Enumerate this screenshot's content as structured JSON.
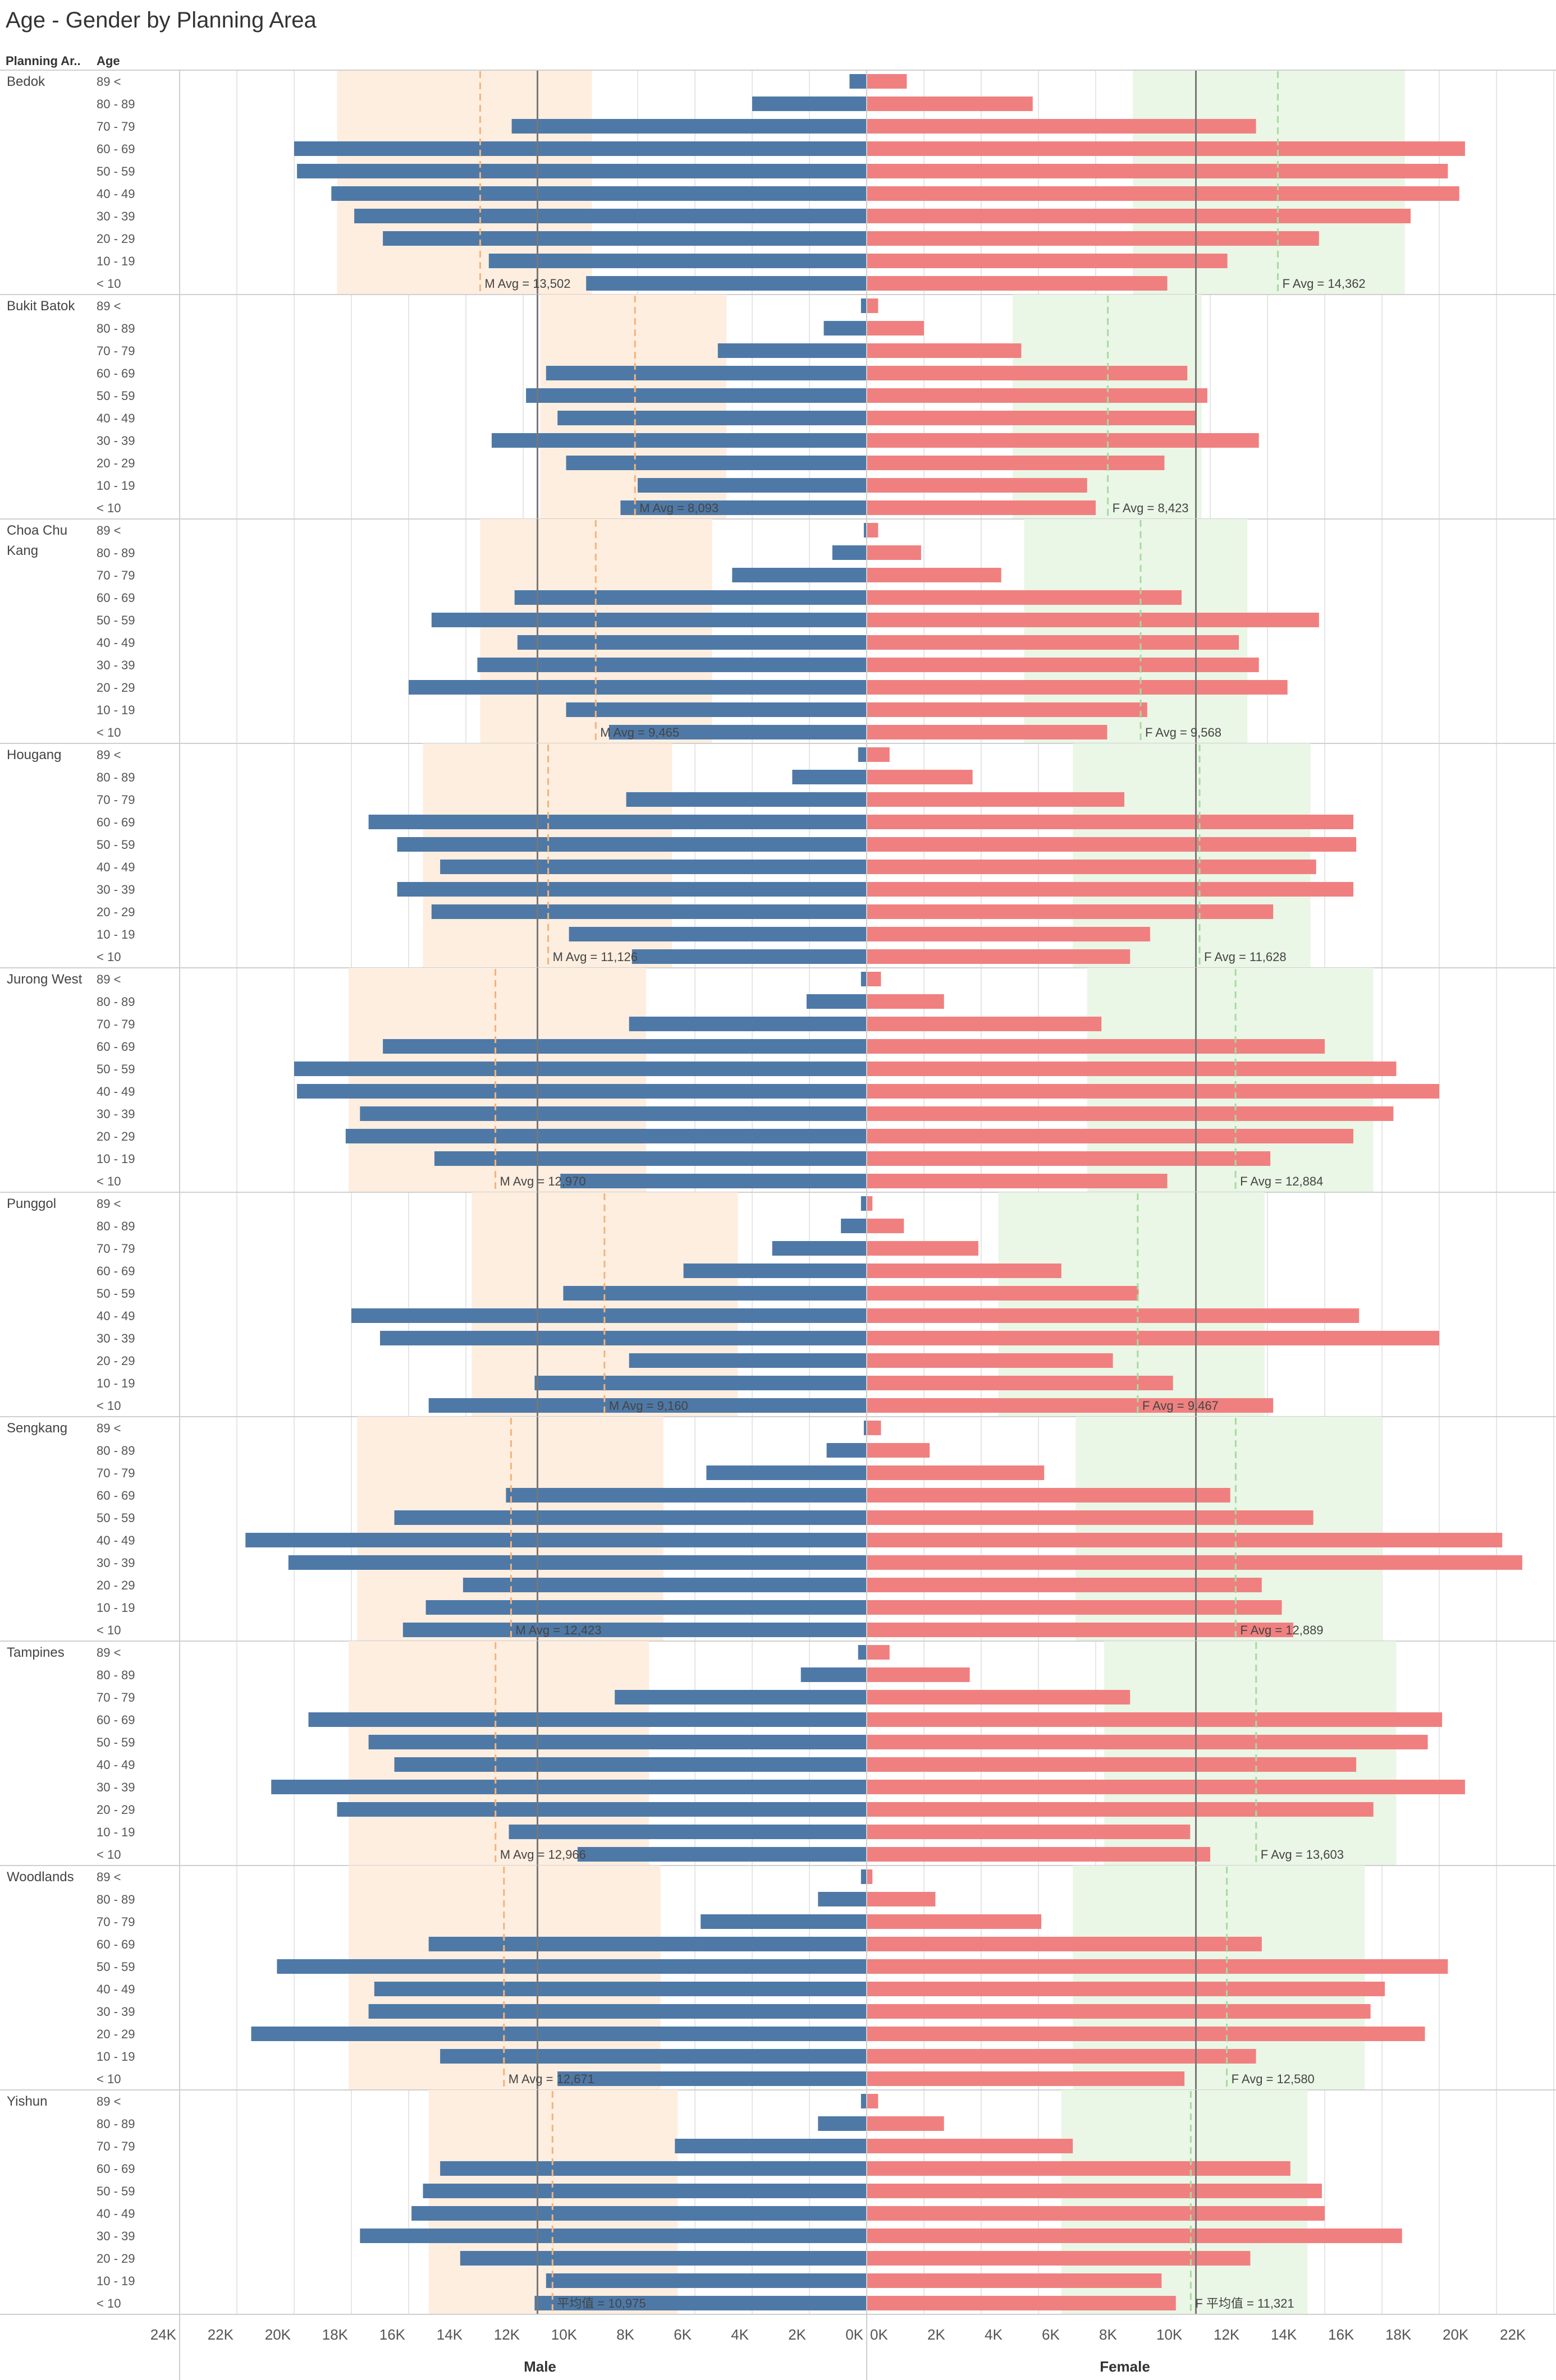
{
  "title": "Age - Gender by Planning Area",
  "header": {
    "area_col": "Planning Ar..",
    "age_col": "Age"
  },
  "colors": {
    "male": "#4e79a7",
    "female": "#f08080",
    "male_band": "#fdeee0",
    "female_band": "#eaf6e6",
    "male_avg_line": "#f4b37a",
    "female_avg_line": "#a6dba0",
    "ref_line": "#777777",
    "grid": "#e6e6e6",
    "divider": "#cfcfcf"
  },
  "chart_data": {
    "type": "bar",
    "orientation": "horizontal",
    "layout": "population-pyramid",
    "age_groups": [
      "89 <",
      "80 - 89",
      "70 - 79",
      "60 - 69",
      "50 - 59",
      "40 - 49",
      "30 - 39",
      "20 - 29",
      "10 - 19",
      "< 10"
    ],
    "x_range": [
      0,
      24000
    ],
    "male_axis_ticks": [
      "24K",
      "22K",
      "20K",
      "18K",
      "16K",
      "14K",
      "12K",
      "10K",
      "8K",
      "6K",
      "4K",
      "2K",
      "0K"
    ],
    "female_axis_ticks": [
      "0K",
      "2K",
      "4K",
      "6K",
      "8K",
      "10K",
      "12K",
      "14K",
      "16K",
      "18K",
      "20K",
      "22K",
      "24K"
    ],
    "male_axis_label": "Male",
    "female_axis_label": "Female",
    "overall_reference_value": 11500,
    "areas": [
      {
        "name": "Bedok",
        "male": [
          600,
          4000,
          12400,
          20000,
          19900,
          18700,
          17900,
          16900,
          13200,
          9800
        ],
        "female": [
          1400,
          5800,
          13600,
          20900,
          20300,
          20700,
          19000,
          15800,
          12600,
          10500
        ],
        "male_avg_label": "M Avg = 13,502",
        "male_avg": 13502,
        "male_band": [
          9600,
          18500
        ],
        "female_avg_label": "F Avg = 14,362",
        "female_avg": 14362,
        "female_band": [
          9300,
          18800
        ]
      },
      {
        "name": "Bukit Batok",
        "male": [
          200,
          1500,
          5200,
          11200,
          11900,
          10800,
          13100,
          10500,
          8000,
          8600
        ],
        "female": [
          400,
          2000,
          5400,
          11200,
          11900,
          11500,
          13700,
          10400,
          7700,
          8000
        ],
        "male_avg_label": "M Avg = 8,093",
        "male_avg": 8093,
        "male_band": [
          4900,
          11400
        ],
        "female_avg_label": "F Avg = 8,423",
        "female_avg": 8423,
        "female_band": [
          5100,
          11700
        ]
      },
      {
        "name": "Choa Chu Kang",
        "male": [
          100,
          1200,
          4700,
          12300,
          15200,
          12200,
          13600,
          16000,
          10500,
          9000
        ],
        "female": [
          400,
          1900,
          4700,
          11000,
          15800,
          13000,
          13700,
          14700,
          9800,
          8400
        ],
        "male_avg_label": "M Avg = 9,465",
        "male_avg": 9465,
        "male_band": [
          5400,
          13500
        ],
        "female_avg_label": "F Avg = 9,568",
        "female_avg": 9568,
        "female_band": [
          5500,
          13300
        ]
      },
      {
        "name": "Hougang",
        "male": [
          300,
          2600,
          8400,
          17400,
          16400,
          14900,
          16400,
          15200,
          10400,
          8200
        ],
        "female": [
          800,
          3700,
          9000,
          17000,
          17100,
          15700,
          17000,
          14200,
          9900,
          9200
        ],
        "male_avg_label": "M Avg = 11,126",
        "male_avg": 11126,
        "male_band": [
          6800,
          15500
        ],
        "female_avg_label": "F Avg = 11,628",
        "female_avg": 11628,
        "female_band": [
          7200,
          15500
        ]
      },
      {
        "name": "Jurong West",
        "male": [
          200,
          2100,
          8300,
          16900,
          20000,
          19900,
          17700,
          18200,
          15100,
          10700
        ],
        "female": [
          500,
          2700,
          8200,
          16000,
          18500,
          20000,
          18400,
          17000,
          14100,
          10500
        ],
        "male_avg_label": "M Avg = 12,970",
        "male_avg": 12970,
        "male_band": [
          7700,
          18100
        ],
        "female_avg_label": "F Avg = 12,884",
        "female_avg": 12884,
        "female_band": [
          7700,
          17700
        ]
      },
      {
        "name": "Punggol",
        "male": [
          200,
          900,
          3300,
          6400,
          10600,
          18000,
          17000,
          8300,
          11600,
          15300
        ],
        "female": [
          200,
          1300,
          3900,
          6800,
          9500,
          17200,
          20000,
          8600,
          10700,
          14200
        ],
        "male_avg_label": "M Avg = 9,160",
        "male_avg": 9160,
        "male_band": [
          4500,
          13800
        ],
        "female_avg_label": "F Avg = 9,467",
        "female_avg": 9467,
        "female_band": [
          4600,
          13900
        ]
      },
      {
        "name": "Sengkang",
        "male": [
          100,
          1400,
          5600,
          12600,
          16500,
          21700,
          20200,
          14100,
          15400,
          16200
        ],
        "female": [
          500,
          2200,
          6200,
          12700,
          15600,
          22200,
          22900,
          13800,
          14500,
          14900
        ],
        "male_avg_label": "M Avg = 12,423",
        "male_avg": 12423,
        "male_band": [
          7100,
          17800
        ],
        "female_avg_label": "F Avg = 12,889",
        "female_avg": 12889,
        "female_band": [
          7300,
          18000
        ]
      },
      {
        "name": "Tampines",
        "male": [
          300,
          2300,
          8800,
          19500,
          17400,
          16500,
          20800,
          18500,
          12500,
          10100
        ],
        "female": [
          800,
          3600,
          9200,
          20100,
          19600,
          17100,
          20900,
          17700,
          11300,
          12000
        ],
        "male_avg_label": "M Avg = 12,966",
        "male_avg": 12966,
        "male_band": [
          7600,
          18100
        ],
        "female_avg_label": "F Avg = 13,603",
        "female_avg": 13603,
        "female_band": [
          8300,
          18500
        ]
      },
      {
        "name": "Woodlands",
        "male": [
          200,
          1700,
          5800,
          15300,
          20600,
          17200,
          17400,
          21500,
          14900,
          10800
        ],
        "female": [
          200,
          2400,
          6100,
          13800,
          20300,
          18100,
          17600,
          19500,
          13600,
          11100
        ],
        "male_avg_label": "M Avg = 12,671",
        "male_avg": 12671,
        "male_band": [
          7200,
          18100
        ],
        "female_avg_label": "F Avg = 12,580",
        "female_avg": 12580,
        "female_band": [
          7200,
          17400
        ]
      },
      {
        "name": "Yishun",
        "male": [
          200,
          1700,
          6700,
          14900,
          15500,
          15900,
          17700,
          14200,
          11200,
          11600
        ],
        "female": [
          400,
          2700,
          7200,
          14800,
          15900,
          16000,
          18700,
          13400,
          10300,
          10800
        ],
        "male_avg_label": "平均值 = 10,975",
        "male_avg": 10975,
        "male_band": [
          6600,
          15300
        ],
        "female_avg_label": "F 平均值 = 11,321",
        "female_avg": 11321,
        "female_band": [
          6800,
          15400
        ]
      }
    ]
  }
}
